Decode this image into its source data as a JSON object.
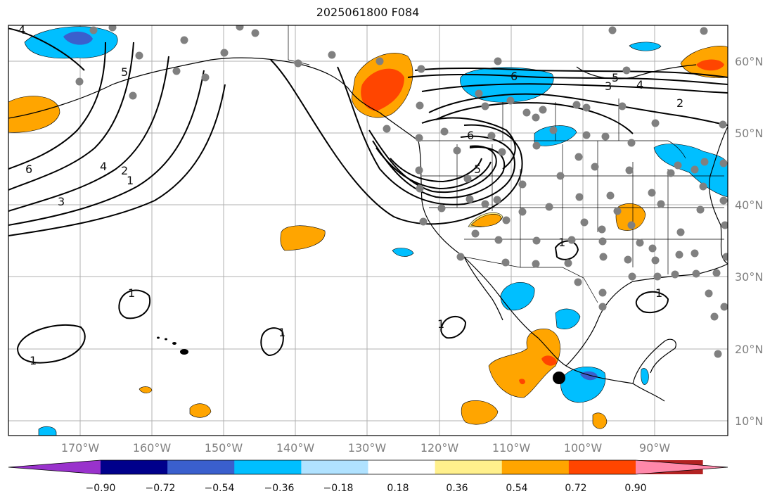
{
  "title": "2025061800 F084",
  "map": {
    "lat_labels": [
      "60°N",
      "50°N",
      "40°N",
      "30°N",
      "20°N",
      "10°N"
    ],
    "lon_labels": [
      "170°W",
      "160°W",
      "150°W",
      "140°W",
      "130°W",
      "120°W",
      "110°W",
      "100°W",
      "90°W"
    ],
    "contour_labels": [
      "4",
      "5",
      "6",
      "4",
      "2",
      "1",
      "3",
      "6",
      "5",
      "4",
      "3",
      "2",
      "6",
      "5",
      "1",
      "1",
      "1",
      "1",
      "1",
      "1"
    ]
  },
  "colorbar": {
    "ticks": [
      "−0.90",
      "−0.72",
      "−0.54",
      "−0.36",
      "−0.18",
      "0.18",
      "0.36",
      "0.54",
      "0.72",
      "0.90"
    ],
    "colors": [
      "#9932cc",
      "#00008b",
      "#3a5fcd",
      "#00bfff",
      "#b0e2ff",
      "#ffffff",
      "#fff08c",
      "#ffa500",
      "#ff4500",
      "#b22222",
      "#ff88aa"
    ]
  }
}
